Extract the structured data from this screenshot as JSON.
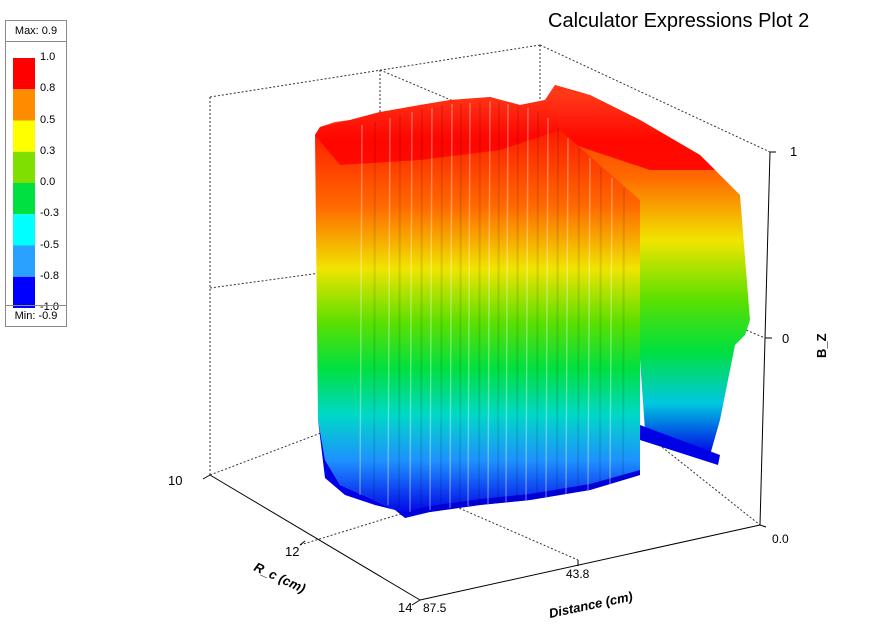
{
  "title": "Calculator Expressions Plot 2",
  "legend": {
    "max_label": "Max: 0.9",
    "min_label": "Min: -0.9",
    "levels": [
      "1.0",
      "0.8",
      "0.5",
      "0.3",
      "0.0",
      "-0.3",
      "-0.5",
      "-0.8",
      "-1.0"
    ],
    "colors": [
      "#ff0000",
      "#ff8c00",
      "#ffff00",
      "#7fe000",
      "#00e040",
      "#00ffff",
      "#2aa0ff",
      "#0000ff"
    ]
  },
  "chart_data": {
    "type": "surface-3d",
    "title": "Calculator Expressions Plot 2",
    "xlabel": "Distance (cm)",
    "ylabel": "R_c (cm)",
    "zlabel": "B_Z",
    "x_ticks": [
      "87.5",
      "43.8",
      "0.0"
    ],
    "y_ticks": [
      "10",
      "12",
      "14"
    ],
    "z_ticks": [
      "1",
      "0"
    ],
    "x_range": [
      87.5,
      0.0
    ],
    "y_range": [
      10,
      14
    ],
    "z_range": [
      -1,
      1
    ],
    "z_min": -0.9,
    "z_max": 0.9,
    "grid": true,
    "colormap": "jet"
  }
}
